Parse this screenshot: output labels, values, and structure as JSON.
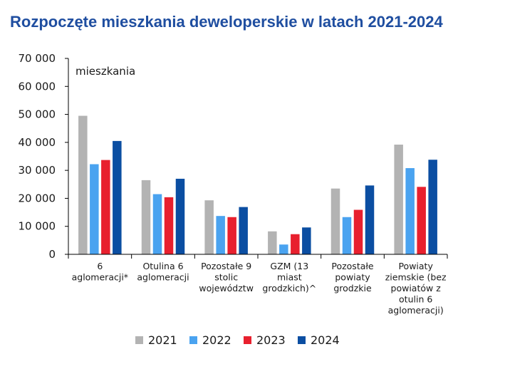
{
  "chart_data": {
    "type": "bar",
    "title": "Rozpoczęte mieszkania deweloperskie w latach 2021-2024",
    "ylabel": "mieszkania",
    "xlabel": "",
    "ylim": [
      0,
      70000
    ],
    "yticks": [
      "0",
      "10 000",
      "20 000",
      "30 000",
      "40 000",
      "50 000",
      "60 000",
      "70 000"
    ],
    "categories": [
      [
        "6",
        "aglomeracji*"
      ],
      [
        "Otulina 6",
        "aglomeracji"
      ],
      [
        "Pozostałe 9",
        "stolic",
        "województw"
      ],
      [
        "GZM (13",
        "miast",
        "grodzkich)^"
      ],
      [
        "Pozostałe",
        "powiaty",
        "grodzkie"
      ],
      [
        "Powiaty",
        "ziemskie (bez",
        "powiatów z",
        "otulin 6",
        "aglomeracji)"
      ]
    ],
    "series": [
      {
        "name": "2021",
        "color": "#b3b3b3",
        "values": [
          49500,
          26500,
          19300,
          8200,
          23500,
          39200
        ]
      },
      {
        "name": "2022",
        "color": "#4aa3f0",
        "values": [
          32200,
          21500,
          13700,
          3500,
          13300,
          30800
        ]
      },
      {
        "name": "2023",
        "color": "#e8202e",
        "values": [
          33700,
          20400,
          13300,
          7200,
          15900,
          24100
        ]
      },
      {
        "name": "2024",
        "color": "#0b4ea2",
        "values": [
          40500,
          27000,
          16900,
          9600,
          24600,
          33800
        ]
      }
    ],
    "legend_position": "bottom",
    "grid": false
  }
}
